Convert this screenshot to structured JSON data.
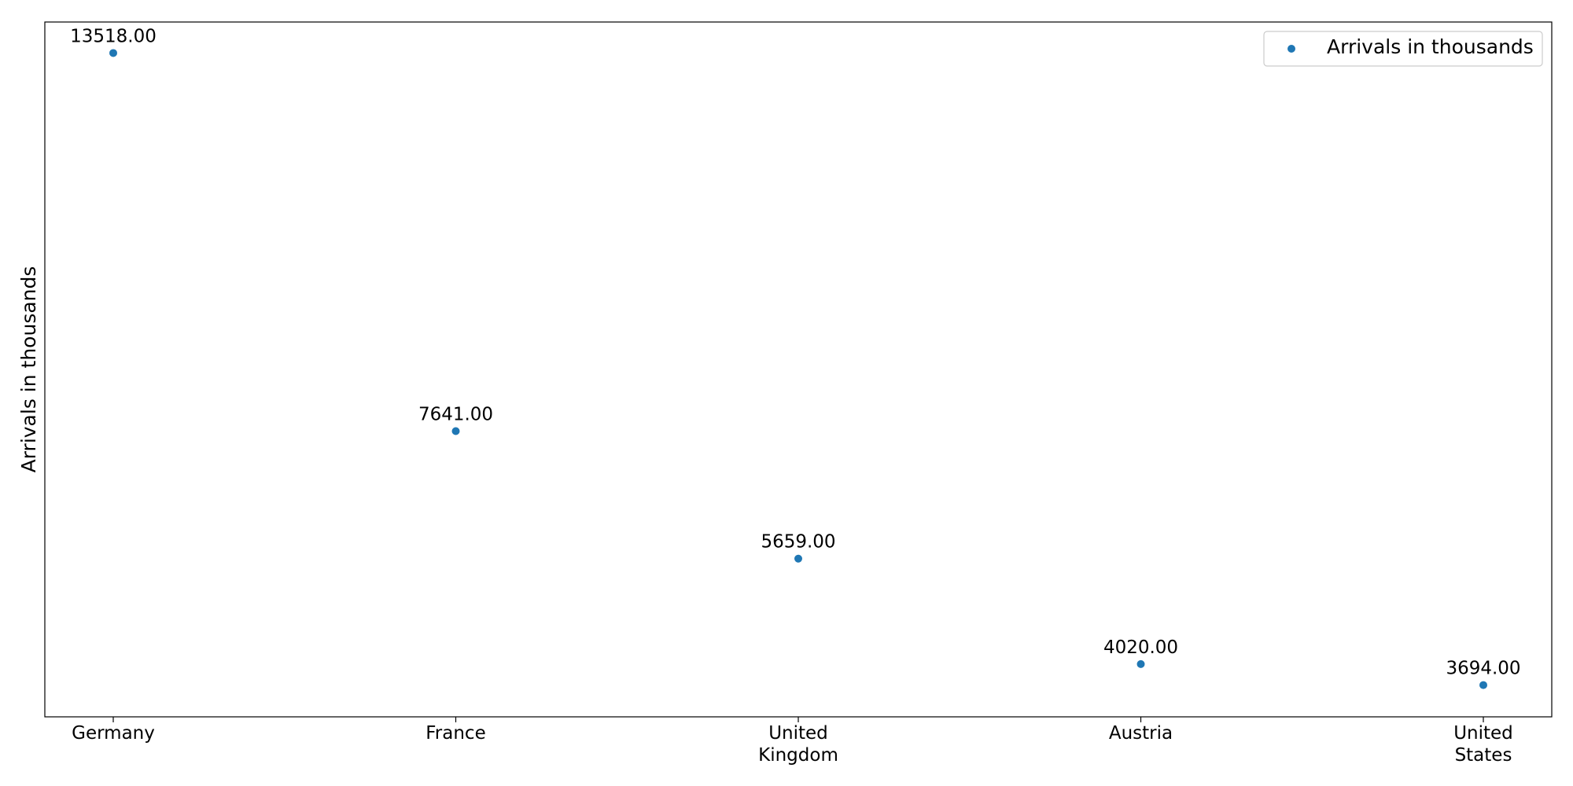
{
  "chart_data": {
    "type": "scatter",
    "title": "",
    "xlabel": "",
    "ylabel": "Arrivals in thousands",
    "categories": [
      [
        "Germany"
      ],
      [
        "France"
      ],
      [
        "United",
        "Kingdom"
      ],
      [
        "Austria"
      ],
      [
        "United",
        "States"
      ]
    ],
    "series": [
      {
        "name": "Arrivals in thousands",
        "values": [
          13518.0,
          7641.0,
          5659.0,
          4020.0,
          3694.0
        ],
        "labels": [
          "13518.00",
          "7641.00",
          "5659.00",
          "4020.00",
          "3694.00"
        ],
        "color": "#1f77b4"
      }
    ],
    "ylim": [
      3200,
      14000
    ],
    "grid": false,
    "y_ticks_shown": false,
    "legend": "top-right"
  }
}
